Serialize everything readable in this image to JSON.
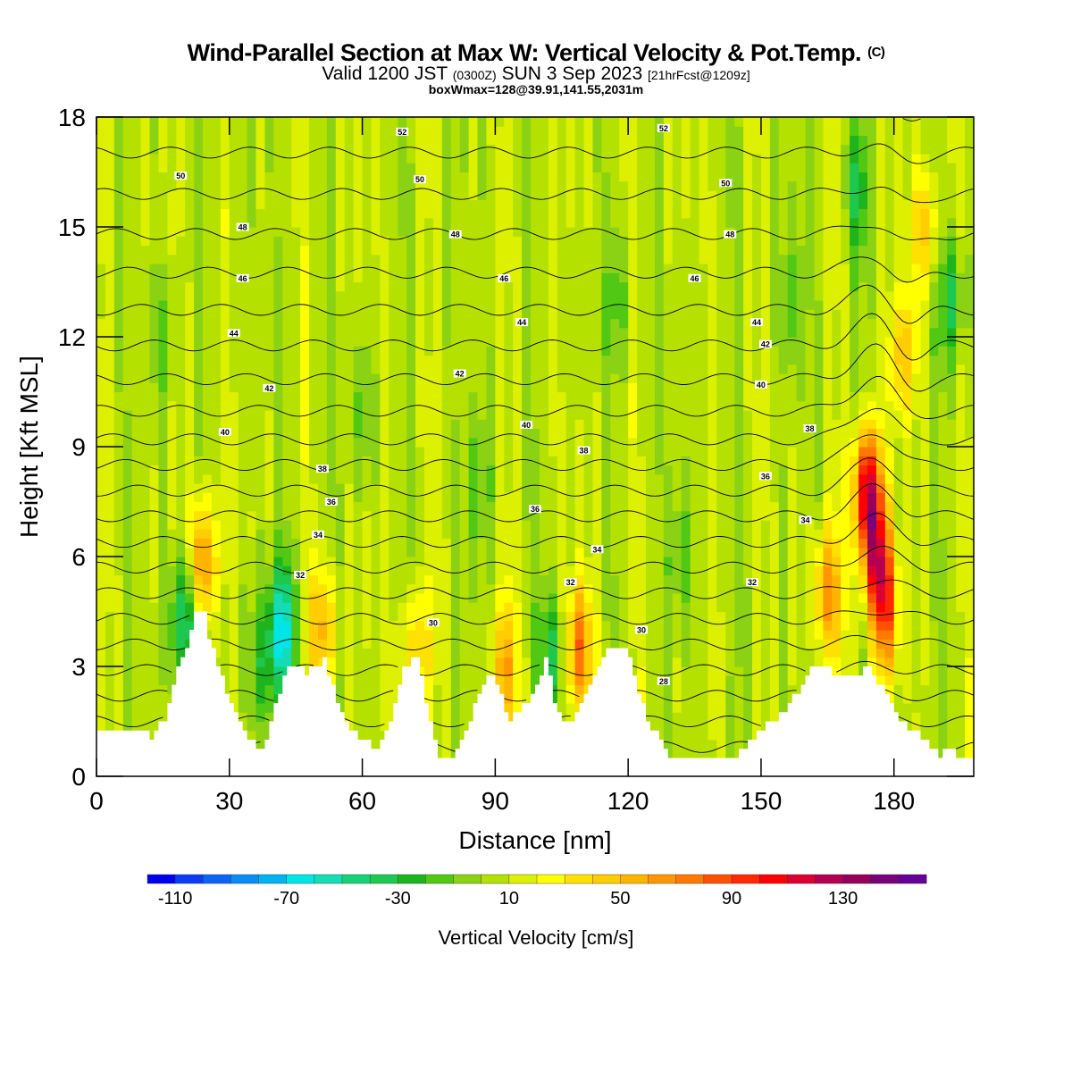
{
  "title": {
    "main": "Wind-Parallel Section at Max W: Vertical Velocity & Pot.Temp.",
    "copyright_mark": "(C)",
    "valid_prefix": "Valid 1200 JST",
    "valid_utc": "(0300Z)",
    "valid_date": "SUN 3 Sep 2023",
    "forecast_info": "[21hrFcst@1209z]",
    "box_info": "boxWmax=128@39.91,141.55,2031m"
  },
  "chart_data": {
    "type": "heatmap",
    "xlabel": "Distance [nm]",
    "ylabel": "Height [Kft MSL]",
    "xlim": [
      0,
      198
    ],
    "ylim": [
      0,
      18
    ],
    "x_ticks": [
      0,
      30,
      60,
      90,
      120,
      150,
      180
    ],
    "y_ticks": [
      0,
      3,
      6,
      9,
      12,
      15,
      18
    ],
    "field": "Vertical Velocity",
    "field_units": "cm/s",
    "colorbar": {
      "label": "Vertical Velocity [cm/s]",
      "levels_min": -120,
      "level_step": 10,
      "tick_labels": [
        -110,
        -70,
        -30,
        10,
        50,
        90,
        130
      ],
      "colors": [
        "#0000f0",
        "#0a3cf5",
        "#0a64f5",
        "#0a8cf5",
        "#00b4f0",
        "#00e6e6",
        "#14dcb4",
        "#14d278",
        "#1ec850",
        "#1eb41e",
        "#50c814",
        "#8cd214",
        "#b4e100",
        "#dcf000",
        "#ffff00",
        "#ffe100",
        "#ffcd00",
        "#ffb400",
        "#ff9600",
        "#ff7800",
        "#ff5000",
        "#ff2800",
        "#ff0000",
        "#dc0032",
        "#b40050",
        "#96005a",
        "#78007d",
        "#640096"
      ]
    },
    "terrain_kft": [
      [
        0,
        1.3
      ],
      [
        10,
        1.3
      ],
      [
        12,
        1.0
      ],
      [
        15,
        1.6
      ],
      [
        18,
        3.0
      ],
      [
        20,
        3.4
      ],
      [
        22,
        4.6
      ],
      [
        24,
        4.5
      ],
      [
        25,
        3.7
      ],
      [
        27,
        3.1
      ],
      [
        30,
        2.0
      ],
      [
        33,
        1.3
      ],
      [
        35,
        0.9
      ],
      [
        37,
        0.7
      ],
      [
        39,
        1.5
      ],
      [
        41,
        2.3
      ],
      [
        43,
        3.0
      ],
      [
        45,
        3.0
      ],
      [
        47,
        2.8
      ],
      [
        49,
        3.0
      ],
      [
        51,
        3.2
      ],
      [
        53,
        2.4
      ],
      [
        56,
        1.4
      ],
      [
        60,
        1.0
      ],
      [
        63,
        0.8
      ],
      [
        65,
        1.2
      ],
      [
        67,
        2.0
      ],
      [
        69,
        3.0
      ],
      [
        72,
        3.2
      ],
      [
        74,
        2.1
      ],
      [
        77,
        0.6
      ],
      [
        80,
        0.4
      ],
      [
        83,
        1.2
      ],
      [
        86,
        2.3
      ],
      [
        88,
        2.8
      ],
      [
        90,
        2.5
      ],
      [
        93,
        1.5
      ],
      [
        96,
        1.9
      ],
      [
        99,
        2.4
      ],
      [
        101,
        3.3
      ],
      [
        103,
        2.1
      ],
      [
        105,
        1.5
      ],
      [
        107,
        1.5
      ],
      [
        110,
        2.2
      ],
      [
        113,
        3.0
      ],
      [
        116,
        3.6
      ],
      [
        119,
        3.6
      ],
      [
        121,
        2.7
      ],
      [
        124,
        1.6
      ],
      [
        127,
        0.9
      ],
      [
        130,
        0.4
      ],
      [
        140,
        0.4
      ],
      [
        146,
        0.7
      ],
      [
        149,
        1.3
      ],
      [
        152,
        1.5
      ],
      [
        155,
        1.8
      ],
      [
        158,
        2.3
      ],
      [
        161,
        2.9
      ],
      [
        163,
        3.1
      ],
      [
        166,
        2.8
      ],
      [
        168,
        2.7
      ],
      [
        171,
        2.8
      ],
      [
        174,
        3.0
      ],
      [
        177,
        2.4
      ],
      [
        180,
        1.7
      ],
      [
        184,
        1.2
      ],
      [
        187,
        1.0
      ],
      [
        190,
        0.6
      ],
      [
        193,
        0.8
      ],
      [
        195,
        0.4
      ],
      [
        198,
        0.4
      ]
    ],
    "theta_labels": [
      {
        "x": 19,
        "y": 16.4,
        "text": "50"
      },
      {
        "x": 33,
        "y": 15.0,
        "text": "48"
      },
      {
        "x": 33,
        "y": 13.6,
        "text": "46"
      },
      {
        "x": 31,
        "y": 12.1,
        "text": "44"
      },
      {
        "x": 39,
        "y": 10.6,
        "text": "42"
      },
      {
        "x": 29,
        "y": 9.4,
        "text": "40"
      },
      {
        "x": 51,
        "y": 8.4,
        "text": "38"
      },
      {
        "x": 53,
        "y": 7.5,
        "text": "36"
      },
      {
        "x": 50,
        "y": 6.6,
        "text": "34"
      },
      {
        "x": 46,
        "y": 5.5,
        "text": "32"
      },
      {
        "x": 69,
        "y": 17.6,
        "text": "52"
      },
      {
        "x": 73,
        "y": 16.3,
        "text": "50"
      },
      {
        "x": 81,
        "y": 14.8,
        "text": "48"
      },
      {
        "x": 92,
        "y": 13.6,
        "text": "46"
      },
      {
        "x": 96,
        "y": 12.4,
        "text": "44"
      },
      {
        "x": 82,
        "y": 11.0,
        "text": "42"
      },
      {
        "x": 97,
        "y": 9.6,
        "text": "40"
      },
      {
        "x": 110,
        "y": 8.9,
        "text": "38"
      },
      {
        "x": 99,
        "y": 7.3,
        "text": "36"
      },
      {
        "x": 113,
        "y": 6.2,
        "text": "34"
      },
      {
        "x": 107,
        "y": 5.3,
        "text": "32"
      },
      {
        "x": 76,
        "y": 4.2,
        "text": "30"
      },
      {
        "x": 128,
        "y": 17.7,
        "text": "52"
      },
      {
        "x": 142,
        "y": 16.2,
        "text": "50"
      },
      {
        "x": 143,
        "y": 14.8,
        "text": "48"
      },
      {
        "x": 135,
        "y": 13.6,
        "text": "46"
      },
      {
        "x": 149,
        "y": 12.4,
        "text": "44"
      },
      {
        "x": 151,
        "y": 11.8,
        "text": "42"
      },
      {
        "x": 150,
        "y": 10.7,
        "text": "40"
      },
      {
        "x": 161,
        "y": 9.5,
        "text": "38"
      },
      {
        "x": 151,
        "y": 8.2,
        "text": "36"
      },
      {
        "x": 160,
        "y": 7.0,
        "text": "34"
      },
      {
        "x": 148,
        "y": 5.3,
        "text": "32"
      },
      {
        "x": 123,
        "y": 4.0,
        "text": "30"
      },
      {
        "x": 128,
        "y": 2.6,
        "text": "28"
      }
    ],
    "w_features": [
      {
        "x": 24,
        "y": 5.8,
        "value": 70
      },
      {
        "x": 20,
        "y": 4.3,
        "value": -60
      },
      {
        "x": 42,
        "y": 4.0,
        "value": -70
      },
      {
        "x": 37,
        "y": 3.0,
        "value": -30
      },
      {
        "x": 51,
        "y": 4.0,
        "value": 50
      },
      {
        "x": 72,
        "y": 3.5,
        "value": 40
      },
      {
        "x": 92,
        "y": 3.0,
        "value": 50
      },
      {
        "x": 109,
        "y": 3.5,
        "value": 70
      },
      {
        "x": 103,
        "y": 3.2,
        "value": -40
      },
      {
        "x": 174,
        "y": 7.8,
        "value": 110
      },
      {
        "x": 176,
        "y": 6.0,
        "value": 80
      },
      {
        "x": 182,
        "y": 11.5,
        "value": 40
      },
      {
        "x": 187,
        "y": 15.0,
        "value": 40
      },
      {
        "x": 172,
        "y": 16.0,
        "value": -30
      },
      {
        "x": 193,
        "y": 13.0,
        "value": -40
      },
      {
        "x": 165,
        "y": 5.0,
        "value": 60
      },
      {
        "x": 178,
        "y": 4.5,
        "value": 70
      },
      {
        "x": 132,
        "y": 6.0,
        "value": -20
      },
      {
        "x": 15,
        "y": 12.0,
        "value": -20
      },
      {
        "x": 60,
        "y": 10.0,
        "value": -20
      },
      {
        "x": 86,
        "y": 8.0,
        "value": -20
      },
      {
        "x": 118,
        "y": 13.0,
        "value": -20
      },
      {
        "x": 157,
        "y": 13.0,
        "value": -20
      }
    ]
  }
}
